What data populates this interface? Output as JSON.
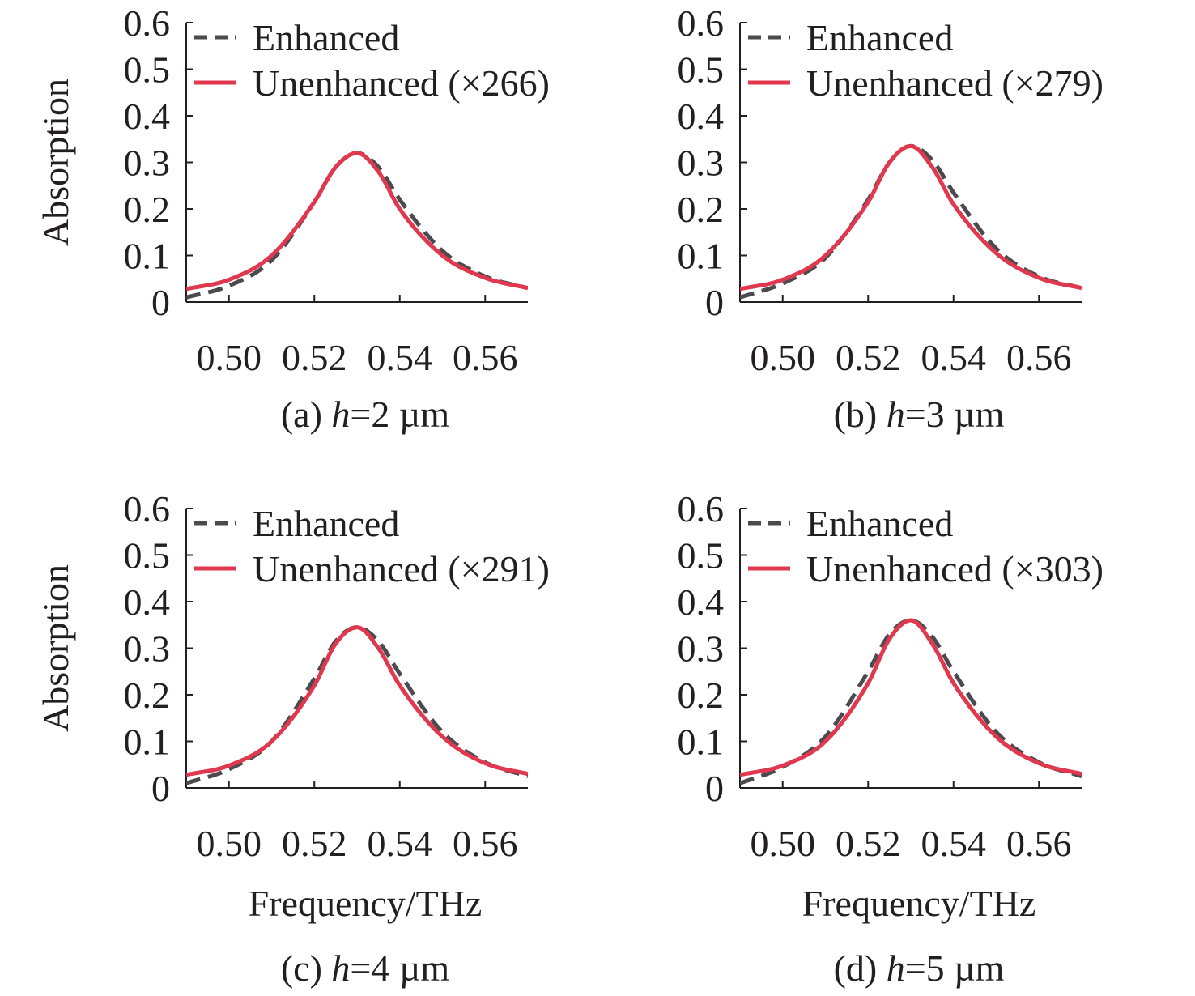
{
  "colors": {
    "enhanced": "#4a4a4f",
    "unenhanced": "#e0384f",
    "axis": "#231f20"
  },
  "chart_data": [
    {
      "id": "a",
      "type": "line",
      "caption": {
        "prefix": "(a) ",
        "var": "h",
        "suffix": "=2 µm"
      },
      "ylabel": "Absorption",
      "xlabel": "",
      "xlim": [
        0.49,
        0.57
      ],
      "ylim": [
        0,
        0.6
      ],
      "xticks": [
        "0.50",
        "0.52",
        "0.54",
        "0.56"
      ],
      "yticks": [
        "0",
        "0.1",
        "0.2",
        "0.3",
        "0.4",
        "0.5",
        "0.6"
      ],
      "legend_position": "top-left",
      "x": [
        0.49,
        0.5,
        0.51,
        0.52,
        0.525,
        0.53,
        0.535,
        0.54,
        0.55,
        0.56,
        0.57
      ],
      "series": [
        {
          "name": "Enhanced",
          "style": "dashed",
          "values": [
            0.01,
            0.035,
            0.09,
            0.215,
            0.29,
            0.32,
            0.29,
            0.22,
            0.11,
            0.055,
            0.03
          ]
        },
        {
          "name": "Unenhanced (×266)",
          "style": "solid",
          "values": [
            0.028,
            0.048,
            0.1,
            0.215,
            0.29,
            0.32,
            0.28,
            0.2,
            0.1,
            0.052,
            0.03
          ]
        }
      ]
    },
    {
      "id": "b",
      "type": "line",
      "caption": {
        "prefix": "(b) ",
        "var": "h",
        "suffix": "=3 µm"
      },
      "ylabel": "",
      "xlabel": "",
      "xlim": [
        0.49,
        0.57
      ],
      "ylim": [
        0,
        0.6
      ],
      "xticks": [
        "0.50",
        "0.52",
        "0.54",
        "0.56"
      ],
      "yticks": [
        "0",
        "0.1",
        "0.2",
        "0.3",
        "0.4",
        "0.5",
        "0.6"
      ],
      "legend_position": "top-left",
      "x": [
        0.49,
        0.5,
        0.51,
        0.52,
        0.525,
        0.53,
        0.535,
        0.54,
        0.55,
        0.56,
        0.57
      ],
      "series": [
        {
          "name": "Enhanced",
          "style": "dashed",
          "values": [
            0.01,
            0.04,
            0.095,
            0.22,
            0.3,
            0.335,
            0.305,
            0.235,
            0.115,
            0.055,
            0.03
          ]
        },
        {
          "name": "Unenhanced (×279)",
          "style": "solid",
          "values": [
            0.028,
            0.048,
            0.1,
            0.215,
            0.3,
            0.335,
            0.29,
            0.21,
            0.105,
            0.052,
            0.03
          ]
        }
      ]
    },
    {
      "id": "c",
      "type": "line",
      "caption": {
        "prefix": "(c) ",
        "var": "h",
        "suffix": "=4 µm"
      },
      "ylabel": "Absorption",
      "xlabel": "Frequency/THz",
      "xlim": [
        0.49,
        0.57
      ],
      "ylim": [
        0,
        0.6
      ],
      "xticks": [
        "0.50",
        "0.52",
        "0.54",
        "0.56"
      ],
      "yticks": [
        "0",
        "0.1",
        "0.2",
        "0.3",
        "0.4",
        "0.5",
        "0.6"
      ],
      "legend_position": "top-left",
      "x": [
        0.49,
        0.5,
        0.51,
        0.52,
        0.525,
        0.53,
        0.535,
        0.54,
        0.55,
        0.56,
        0.57
      ],
      "series": [
        {
          "name": "Enhanced",
          "style": "dashed",
          "values": [
            0.01,
            0.04,
            0.1,
            0.235,
            0.315,
            0.345,
            0.315,
            0.245,
            0.12,
            0.055,
            0.025
          ]
        },
        {
          "name": "Unenhanced (×291)",
          "style": "solid",
          "values": [
            0.028,
            0.048,
            0.1,
            0.22,
            0.31,
            0.345,
            0.3,
            0.22,
            0.11,
            0.053,
            0.03
          ]
        }
      ]
    },
    {
      "id": "d",
      "type": "line",
      "caption": {
        "prefix": "(d) ",
        "var": "h",
        "suffix": "=5 µm"
      },
      "ylabel": "",
      "xlabel": "Frequency/THz",
      "xlim": [
        0.49,
        0.57
      ],
      "ylim": [
        0,
        0.6
      ],
      "xticks": [
        "0.50",
        "0.52",
        "0.54",
        "0.56"
      ],
      "yticks": [
        "0",
        "0.1",
        "0.2",
        "0.3",
        "0.4",
        "0.5",
        "0.6"
      ],
      "legend_position": "top-left",
      "x": [
        0.49,
        0.5,
        0.51,
        0.52,
        0.525,
        0.53,
        0.535,
        0.54,
        0.55,
        0.56,
        0.57
      ],
      "series": [
        {
          "name": "Enhanced",
          "style": "dashed",
          "values": [
            0.01,
            0.045,
            0.11,
            0.25,
            0.33,
            0.36,
            0.325,
            0.25,
            0.12,
            0.055,
            0.025
          ]
        },
        {
          "name": "Unenhanced (×303)",
          "style": "solid",
          "values": [
            0.028,
            0.048,
            0.1,
            0.225,
            0.32,
            0.36,
            0.31,
            0.225,
            0.11,
            0.053,
            0.03
          ]
        }
      ]
    }
  ]
}
